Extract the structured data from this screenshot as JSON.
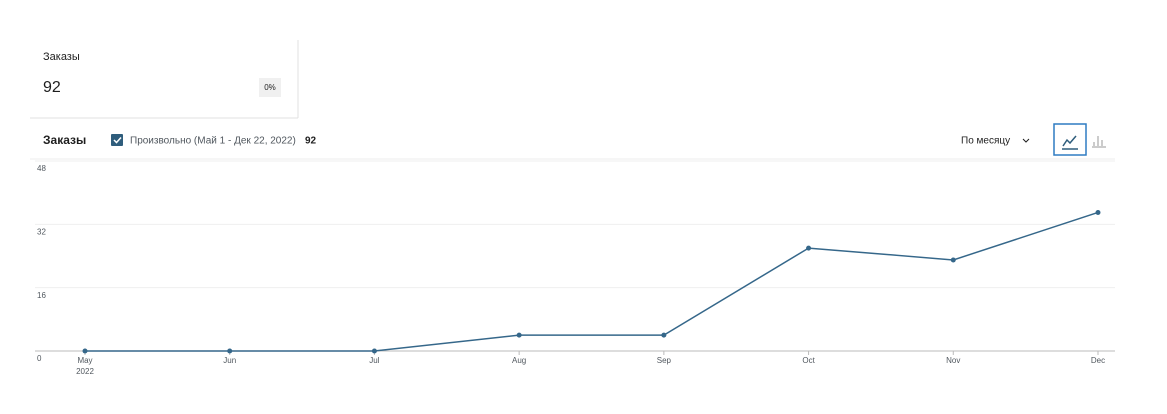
{
  "card": {
    "label": "Заказы",
    "value": "92",
    "delta": "0%"
  },
  "header": {
    "total": "92",
    "period": "По месяцу"
  },
  "chart_data": {
    "type": "line",
    "title": "Заказы",
    "categories": [
      "May",
      "Jun",
      "Jul",
      "Aug",
      "Sep",
      "Oct",
      "Nov",
      "Dec"
    ],
    "x_year_label": "2022",
    "series": [
      {
        "name": "Произвольно (Май 1 - Дек 22, 2022)",
        "color": "#35678a",
        "values": [
          0,
          0,
          0,
          4,
          4,
          26,
          23,
          35
        ]
      }
    ],
    "ylim": [
      0,
      48
    ],
    "yticks": [
      0,
      16,
      32,
      48
    ],
    "grid": true
  }
}
